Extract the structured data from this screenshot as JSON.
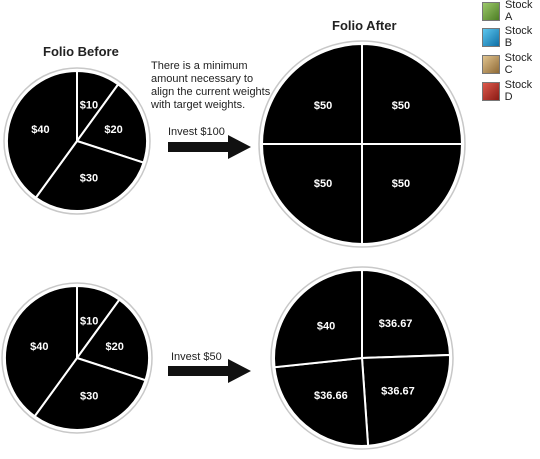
{
  "titles": {
    "before": "Folio Before",
    "after": "Folio After"
  },
  "note": "There is a minimum amount necessary to align the current weights with target weights.",
  "invest_labels": [
    "Invest $100",
    "Invest $50"
  ],
  "legend": [
    {
      "name": "Stock A",
      "color": "#6a9a3a"
    },
    {
      "name": "Stock B",
      "color": "#1a8cc4"
    },
    {
      "name": "Stock C",
      "color": "#b08a50"
    },
    {
      "name": "Stock D",
      "color": "#b02c24"
    }
  ],
  "pies": [
    {
      "id": "before-top",
      "slices": [
        {
          "stock": "Stock B",
          "label": "$10",
          "value": 10
        },
        {
          "stock": "Stock C",
          "label": "$20",
          "value": 20
        },
        {
          "stock": "Stock D",
          "label": "$30",
          "value": 30
        },
        {
          "stock": "Stock A",
          "label": "$40",
          "value": 40
        }
      ]
    },
    {
      "id": "after-top",
      "slices": [
        {
          "stock": "Stock B",
          "label": "$50",
          "value": 50
        },
        {
          "stock": "Stock C",
          "label": "$50",
          "value": 50
        },
        {
          "stock": "Stock D",
          "label": "$50",
          "value": 50
        },
        {
          "stock": "Stock A",
          "label": "$50",
          "value": 50
        }
      ]
    },
    {
      "id": "before-bottom",
      "slices": [
        {
          "stock": "Stock B",
          "label": "$10",
          "value": 10
        },
        {
          "stock": "Stock C",
          "label": "$20",
          "value": 20
        },
        {
          "stock": "Stock D",
          "label": "$30",
          "value": 30
        },
        {
          "stock": "Stock A",
          "label": "$40",
          "value": 40
        }
      ]
    },
    {
      "id": "after-bottom",
      "slices": [
        {
          "stock": "Stock B",
          "label": "$36.67",
          "value": 36.67
        },
        {
          "stock": "Stock C",
          "label": "$36.67",
          "value": 36.67
        },
        {
          "stock": "Stock D",
          "label": "$36.66",
          "value": 36.66
        },
        {
          "stock": "Stock A",
          "label": "$40",
          "value": 40
        }
      ]
    }
  ]
}
